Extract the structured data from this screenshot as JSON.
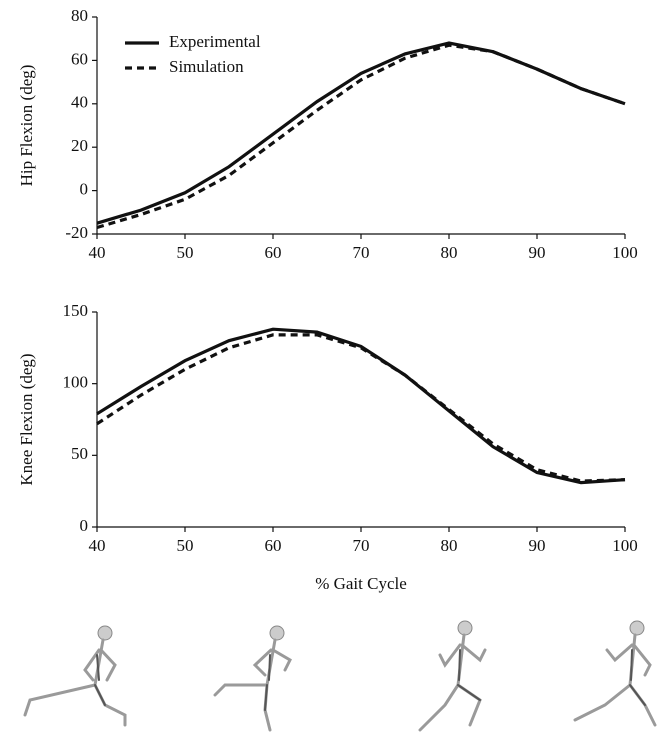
{
  "chart_data": [
    {
      "type": "line",
      "ylabel": "Hip Flexion (deg)",
      "x": [
        40,
        45,
        50,
        55,
        60,
        65,
        70,
        75,
        80,
        85,
        90,
        95,
        100
      ],
      "series": [
        {
          "name": "Experimental",
          "color": "#111111",
          "linestyle": "solid",
          "values": [
            -15,
            -9,
            -1,
            11,
            26,
            41,
            54,
            63,
            68,
            64,
            56,
            47,
            40
          ]
        },
        {
          "name": "Simulation",
          "color": "#111111",
          "linestyle": "dashed",
          "values": [
            -17,
            -11,
            -4,
            7,
            22,
            37,
            51,
            61,
            67,
            64,
            56,
            47,
            40
          ]
        }
      ],
      "xlim": [
        40,
        100
      ],
      "xticks": [
        40,
        50,
        60,
        70,
        80,
        90,
        100
      ],
      "ylim": [
        -20,
        80
      ],
      "yticks": [
        -20,
        0,
        20,
        40,
        60,
        80
      ],
      "legend": "upper left",
      "grid": false
    },
    {
      "type": "line",
      "ylabel": "Knee Flexion (deg)",
      "xlabel": "% Gait Cycle",
      "x": [
        40,
        45,
        50,
        55,
        60,
        65,
        70,
        75,
        80,
        85,
        90,
        95,
        100
      ],
      "series": [
        {
          "color": "#111111",
          "linestyle": "solid",
          "values": [
            79,
            98,
            116,
            130,
            138,
            136,
            126,
            106,
            81,
            56,
            38,
            31,
            33
          ]
        },
        {
          "color": "#111111",
          "linestyle": "dashed",
          "values": [
            72,
            92,
            110,
            125,
            134,
            134,
            125,
            106,
            82,
            58,
            40,
            32,
            33
          ]
        }
      ],
      "xlim": [
        40,
        100
      ],
      "xticks": [
        40,
        50,
        60,
        70,
        80,
        90,
        100
      ],
      "ylim": [
        0,
        150
      ],
      "yticks": [
        0,
        50,
        100,
        150
      ],
      "grid": false
    }
  ]
}
